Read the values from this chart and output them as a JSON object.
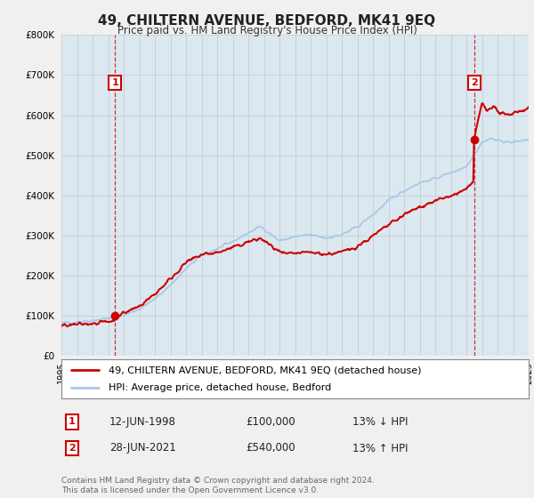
{
  "title": "49, CHILTERN AVENUE, BEDFORD, MK41 9EQ",
  "subtitle": "Price paid vs. HM Land Registry's House Price Index (HPI)",
  "hpi_color": "#a8c8e8",
  "price_color": "#cc0000",
  "background_color": "#f0f0f0",
  "plot_bg_color": "#dce8f0",
  "ylim": [
    0,
    800000
  ],
  "yticks": [
    0,
    100000,
    200000,
    300000,
    400000,
    500000,
    600000,
    700000,
    800000
  ],
  "ytick_labels": [
    "£0",
    "£100K",
    "£200K",
    "£300K",
    "£400K",
    "£500K",
    "£600K",
    "£700K",
    "£800K"
  ],
  "year_start": 1995,
  "year_end": 2025,
  "sale1_year": 1998.45,
  "sale1_price": 100000,
  "sale1_label": "1",
  "sale1_date": "12-JUN-1998",
  "sale1_amount": "£100,000",
  "sale1_hpi": "13% ↓ HPI",
  "sale2_year": 2021.49,
  "sale2_price": 540000,
  "sale2_label": "2",
  "sale2_date": "28-JUN-2021",
  "sale2_amount": "£540,000",
  "sale2_hpi": "13% ↑ HPI",
  "legend_line1": "49, CHILTERN AVENUE, BEDFORD, MK41 9EQ (detached house)",
  "legend_line2": "HPI: Average price, detached house, Bedford",
  "footer": "Contains HM Land Registry data © Crown copyright and database right 2024.\nThis data is licensed under the Open Government Licence v3.0."
}
